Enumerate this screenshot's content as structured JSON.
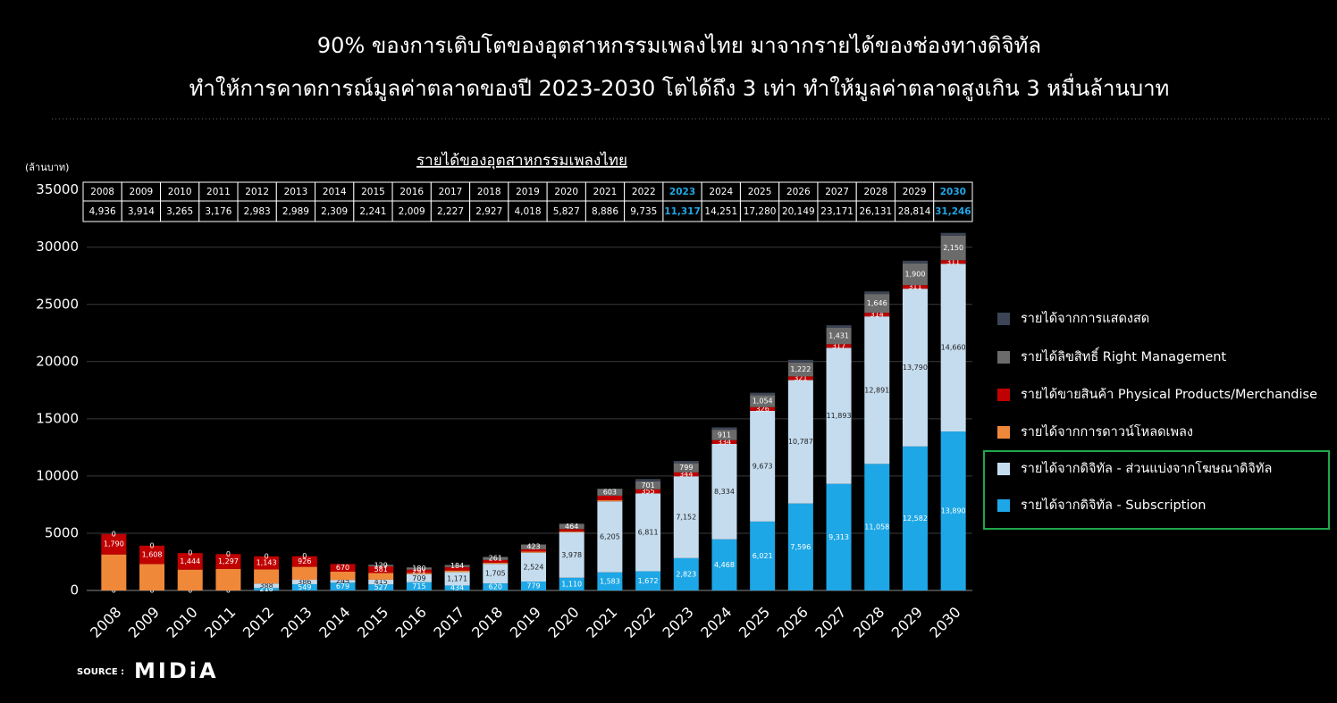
{
  "chart_data": {
    "type": "stacked_bar",
    "title": [
      "90% ของการเติบโตของอุตสาหกรรมเพลงไทย มาจากรายได้ของช่องทางดิจิทัล",
      "ทำให้การคาดการณ์มูลค่าตลาดของปี 2023-2030 โตได้ถึง 3 เท่า ทำให้มูลค่าตลาดสูงเกิน 3 หมื่นล้านบาท"
    ],
    "table_title": "รายได้ของอุตสาหกรรมเพลงไทย",
    "y_label": "(ล้านบาท)",
    "source_label": "SOURCE :",
    "source": "MIDiA",
    "categories": [
      "2008",
      "2009",
      "2010",
      "2011",
      "2012",
      "2013",
      "2014",
      "2015",
      "2016",
      "2017",
      "2018",
      "2019",
      "2020",
      "2021",
      "2022",
      "2023",
      "2024",
      "2025",
      "2026",
      "2027",
      "2028",
      "2029",
      "2030"
    ],
    "totals": [
      "4,936",
      "3,914",
      "3,265",
      "3,176",
      "2,983",
      "2,989",
      "2,309",
      "2,241",
      "2,009",
      "2,227",
      "2,927",
      "4,018",
      "5,827",
      "8,886",
      "9,735",
      "11,317",
      "14,251",
      "17,280",
      "20,149",
      "23,171",
      "26,131",
      "28,814",
      "31,246"
    ],
    "table_highlight": [
      15,
      22
    ],
    "table_highlight_color": "#1ea7e6",
    "ylim": [
      0,
      35000
    ],
    "yticks": [
      0,
      5000,
      10000,
      15000,
      20000,
      25000,
      30000,
      35000
    ],
    "grid": true,
    "series": [
      {
        "name": "รายได้จากดิจิทัล - Subscription",
        "color": "#1ea7e6",
        "values": [
          0,
          0,
          0,
          0,
          218,
          549,
          679,
          527,
          715,
          434,
          620,
          779,
          1110,
          1583,
          1672,
          2823,
          4468,
          6021,
          7596,
          9313,
          11058,
          12582,
          13890
        ],
        "value_labels": [
          "0",
          "0",
          "0",
          "0",
          "218",
          "549",
          "679",
          "527",
          "715",
          "434",
          "620",
          "779",
          "1,110",
          "1,583",
          "1,672",
          "2,823",
          "4,468",
          "6,021",
          "7,596",
          "9,313",
          "11,058",
          "12,582",
          "13,890"
        ]
      },
      {
        "name": "รายได้จากดิจิทัล  - ส่วนแบ่งจากโฆษณาดิจิทัล",
        "color": "#c5dcee",
        "values": [
          0,
          0,
          0,
          0,
          388,
          386,
          245,
          415,
          709,
          1171,
          1705,
          2524,
          3978,
          6205,
          6811,
          7152,
          8334,
          9673,
          10787,
          11893,
          12891,
          13790,
          14660
        ],
        "value_labels": [
          null,
          null,
          null,
          null,
          "388",
          "386",
          "245",
          "415",
          "709",
          "1,171",
          "1,705",
          "2,524",
          "3,978",
          "6,205",
          "6,811",
          "7,152",
          "8,334",
          "9,673",
          "10,787",
          "11,893",
          "12,891",
          "13,790",
          "14,660"
        ]
      },
      {
        "name": "รายได้จากการดาวน์โหลดเพลง",
        "color": "#f0883a",
        "values": [
          3146,
          2306,
          1821,
          1879,
          1234,
          1128,
          715,
          589,
          114,
          138,
          91,
          92,
          75,
          95,
          0,
          0,
          0,
          0,
          0,
          0,
          0,
          0,
          0
        ]
      },
      {
        "name": "รายได้ขายสินค้า Physical Products/Merchandise",
        "color": "#c00000",
        "values": [
          1790,
          1608,
          1444,
          1297,
          1143,
          926,
          670,
          581,
          291,
          300,
          250,
          200,
          200,
          400,
          355,
          344,
          334,
          326,
          321,
          317,
          314,
          311,
          311
        ],
        "value_labels": [
          "1,790",
          "1,608",
          "1,444",
          "1,297",
          "1,143",
          "926",
          "670",
          "581",
          "291",
          null,
          null,
          null,
          null,
          null,
          "355",
          "344",
          "334",
          "326",
          "321",
          "317",
          "314",
          "311",
          "311"
        ]
      },
      {
        "name": "รายได้ลิขสิทธิ์ Right Management",
        "color": "#6b6b6b",
        "values": [
          0,
          0,
          0,
          0,
          0,
          0,
          0,
          129,
          180,
          184,
          261,
          423,
          464,
          603,
          701,
          799,
          911,
          1054,
          1222,
          1431,
          1646,
          1900,
          2150
        ],
        "value_labels": [
          "0",
          "0",
          "0",
          "0",
          "0",
          "0",
          null,
          "129",
          "180",
          "184",
          "261",
          "423",
          "464",
          "603",
          "701",
          "799",
          "911",
          "1,054",
          "1,222",
          "1,431",
          "1,646",
          "1,900",
          "2,150"
        ]
      },
      {
        "name": "รายได้จากการแสดงสด",
        "color": "#3c4455",
        "values": [
          0,
          0,
          0,
          0,
          0,
          0,
          0,
          0,
          0,
          0,
          0,
          0,
          0,
          0,
          196,
          199,
          204,
          206,
          223,
          217,
          222,
          231,
          235
        ]
      }
    ],
    "legend_highlight": [
      0,
      1
    ],
    "legend_highlight_color": "#1fa74a"
  }
}
